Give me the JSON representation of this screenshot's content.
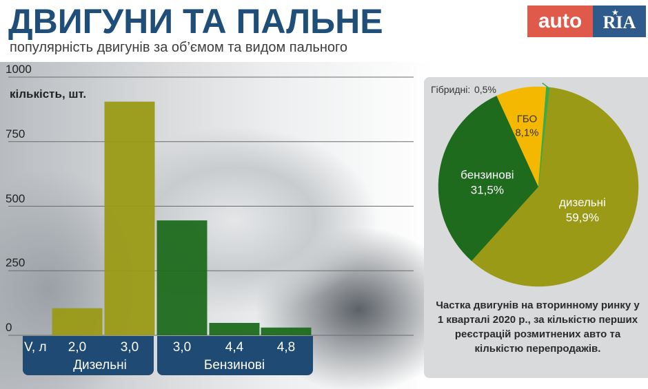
{
  "header": {
    "title": "ДВИГУНИ ТА ПАЛЬНЕ",
    "subtitle": "популярність двигунів за об’ємом та видом пального"
  },
  "logo": {
    "part1": "auto",
    "part2": "RIA"
  },
  "colors": {
    "diesel": "#9a9a16",
    "petrol": "#1e6b1e",
    "lpg": "#f5b800",
    "hybrid": "#3aaa4a",
    "navy": "#1e4a73"
  },
  "note": "Частка двигунів на вторинному ринку у 1 кварталі 2020 р., за кількістю перших реєстрацій розмитнених авто та кількістю перепродажів.",
  "chart_data": [
    {
      "type": "bar",
      "ylabel": "кількість, шт.",
      "xlabel": "V, л",
      "ylim": [
        0,
        1000
      ],
      "yticks": [
        0,
        250,
        500,
        750,
        1000
      ],
      "groups": [
        {
          "name": "Дизельні",
          "color": "#9a9a16",
          "categories": [
            "2,0",
            "3,0"
          ],
          "values": [
            105,
            905
          ]
        },
        {
          "name": "Бензинові",
          "color": "#1e6b1e",
          "categories": [
            "3,0",
            "4,4",
            "4,8"
          ],
          "values": [
            445,
            48,
            30
          ]
        }
      ]
    },
    {
      "type": "pie",
      "slices": [
        {
          "label": "дизельні",
          "value": 59.9,
          "value_label": "59,9%",
          "color": "#9a9a16"
        },
        {
          "label": "бензинові",
          "value": 31.5,
          "value_label": "31,5%",
          "color": "#1e6b1e"
        },
        {
          "label": "ГБО",
          "value": 8.1,
          "value_label": "8,1%",
          "color": "#f5b800"
        },
        {
          "label": "Гібридні:",
          "value": 0.5,
          "value_label": "0,5%",
          "color": "#3aaa4a"
        }
      ]
    }
  ]
}
